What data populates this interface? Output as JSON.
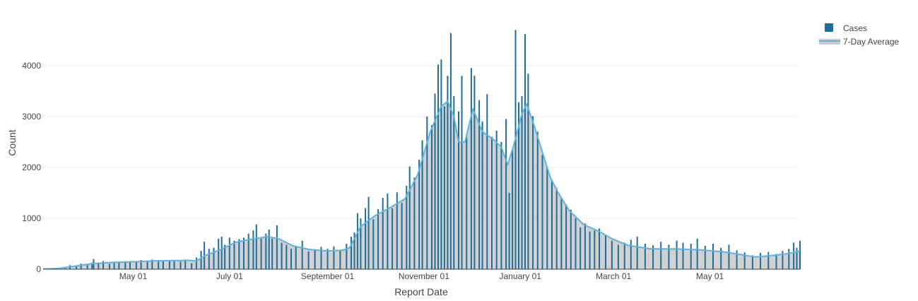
{
  "chart_data": {
    "type": "bar",
    "xlabel": "Report Date",
    "ylabel": "Count",
    "ylim": [
      0,
      4900
    ],
    "yticks": [
      0,
      1000,
      2000,
      3000,
      4000
    ],
    "xticks": [
      {
        "date": "2020-05-01",
        "label": "May 01"
      },
      {
        "date": "2020-07-01",
        "label": "July 01"
      },
      {
        "date": "2020-09-01",
        "label": "September 01"
      },
      {
        "date": "2020-11-01",
        "label": "November 01"
      },
      {
        "date": "2021-01-01",
        "label": "January 01"
      },
      {
        "date": "2021-03-01",
        "label": "March 01"
      },
      {
        "date": "2021-05-01",
        "label": "May 01"
      }
    ],
    "x_range": [
      "2020-03-05",
      "2021-06-27"
    ],
    "grid": true,
    "legend_position": "top-right",
    "colors": {
      "bars": "#1f6e9a",
      "line": "#5ab4e0",
      "area": "#cccccc",
      "grid": "#eeeeee"
    },
    "series": [
      {
        "name": "Cases",
        "kind": "bar",
        "points": [
          [
            "2020-03-05",
            3
          ],
          [
            "2020-03-12",
            10
          ],
          [
            "2020-03-19",
            30
          ],
          [
            "2020-03-22",
            80
          ],
          [
            "2020-03-26",
            70
          ],
          [
            "2020-03-29",
            110
          ],
          [
            "2020-04-02",
            100
          ],
          [
            "2020-04-05",
            130
          ],
          [
            "2020-04-06",
            200
          ],
          [
            "2020-04-09",
            130
          ],
          [
            "2020-04-12",
            160
          ],
          [
            "2020-04-16",
            110
          ],
          [
            "2020-04-19",
            120
          ],
          [
            "2020-04-22",
            150
          ],
          [
            "2020-04-26",
            130
          ],
          [
            "2020-04-29",
            160
          ],
          [
            "2020-05-03",
            140
          ],
          [
            "2020-05-06",
            180
          ],
          [
            "2020-05-10",
            160
          ],
          [
            "2020-05-13",
            190
          ],
          [
            "2020-05-17",
            150
          ],
          [
            "2020-05-20",
            180
          ],
          [
            "2020-05-24",
            160
          ],
          [
            "2020-05-27",
            170
          ],
          [
            "2020-05-31",
            150
          ],
          [
            "2020-06-03",
            190
          ],
          [
            "2020-06-07",
            120
          ],
          [
            "2020-06-10",
            230
          ],
          [
            "2020-06-13",
            360
          ],
          [
            "2020-06-15",
            540
          ],
          [
            "2020-06-18",
            400
          ],
          [
            "2020-06-21",
            420
          ],
          [
            "2020-06-24",
            600
          ],
          [
            "2020-06-26",
            640
          ],
          [
            "2020-06-28",
            480
          ],
          [
            "2020-07-01",
            620
          ],
          [
            "2020-07-04",
            560
          ],
          [
            "2020-07-07",
            590
          ],
          [
            "2020-07-10",
            620
          ],
          [
            "2020-07-13",
            700
          ],
          [
            "2020-07-16",
            760
          ],
          [
            "2020-07-18",
            880
          ],
          [
            "2020-07-21",
            600
          ],
          [
            "2020-07-24",
            700
          ],
          [
            "2020-07-26",
            780
          ],
          [
            "2020-07-28",
            600
          ],
          [
            "2020-07-31",
            860
          ],
          [
            "2020-08-03",
            520
          ],
          [
            "2020-08-06",
            480
          ],
          [
            "2020-08-09",
            400
          ],
          [
            "2020-08-12",
            460
          ],
          [
            "2020-08-16",
            560
          ],
          [
            "2020-08-20",
            350
          ],
          [
            "2020-08-24",
            370
          ],
          [
            "2020-08-28",
            440
          ],
          [
            "2020-09-01",
            400
          ],
          [
            "2020-09-05",
            450
          ],
          [
            "2020-09-09",
            380
          ],
          [
            "2020-09-13",
            500
          ],
          [
            "2020-09-16",
            640
          ],
          [
            "2020-09-18",
            720
          ],
          [
            "2020-09-20",
            1100
          ],
          [
            "2020-09-22",
            1000
          ],
          [
            "2020-09-25",
            1200
          ],
          [
            "2020-09-27",
            1420
          ],
          [
            "2020-09-30",
            980
          ],
          [
            "2020-10-03",
            1180
          ],
          [
            "2020-10-06",
            1400
          ],
          [
            "2020-10-09",
            1490
          ],
          [
            "2020-10-12",
            1200
          ],
          [
            "2020-10-15",
            1510
          ],
          [
            "2020-10-18",
            1300
          ],
          [
            "2020-10-21",
            1640
          ],
          [
            "2020-10-23",
            2020
          ],
          [
            "2020-10-26",
            1800
          ],
          [
            "2020-10-29",
            2150
          ],
          [
            "2020-10-31",
            2530
          ],
          [
            "2020-11-03",
            3000
          ],
          [
            "2020-11-06",
            2830
          ],
          [
            "2020-11-08",
            3450
          ],
          [
            "2020-11-10",
            4020
          ],
          [
            "2020-11-12",
            4120
          ],
          [
            "2020-11-14",
            3200
          ],
          [
            "2020-11-16",
            3800
          ],
          [
            "2020-11-18",
            4640
          ],
          [
            "2020-11-20",
            3400
          ],
          [
            "2020-11-23",
            3100
          ],
          [
            "2020-11-25",
            3800
          ],
          [
            "2020-11-28",
            2600
          ],
          [
            "2020-12-01",
            3950
          ],
          [
            "2020-12-03",
            3800
          ],
          [
            "2020-12-06",
            3320
          ],
          [
            "2020-12-08",
            2900
          ],
          [
            "2020-12-11",
            3440
          ],
          [
            "2020-12-14",
            2600
          ],
          [
            "2020-12-17",
            2720
          ],
          [
            "2020-12-20",
            2500
          ],
          [
            "2020-12-23",
            2950
          ],
          [
            "2020-12-25",
            1500
          ],
          [
            "2020-12-27",
            2350
          ],
          [
            "2020-12-29",
            4700
          ],
          [
            "2020-12-31",
            3280
          ],
          [
            "2021-01-02",
            3400
          ],
          [
            "2021-01-04",
            4620
          ],
          [
            "2021-01-06",
            3840
          ],
          [
            "2021-01-09",
            3010
          ],
          [
            "2021-01-12",
            2700
          ],
          [
            "2021-01-15",
            2250
          ],
          [
            "2021-01-18",
            2000
          ],
          [
            "2021-01-21",
            1760
          ],
          [
            "2021-01-24",
            1590
          ],
          [
            "2021-01-27",
            1400
          ],
          [
            "2021-01-30",
            1270
          ],
          [
            "2021-02-02",
            1170
          ],
          [
            "2021-02-05",
            1000
          ],
          [
            "2021-02-08",
            820
          ],
          [
            "2021-02-11",
            900
          ],
          [
            "2021-02-14",
            740
          ],
          [
            "2021-02-17",
            760
          ],
          [
            "2021-02-20",
            800
          ],
          [
            "2021-02-24",
            680
          ],
          [
            "2021-02-28",
            560
          ],
          [
            "2021-03-04",
            480
          ],
          [
            "2021-03-08",
            520
          ],
          [
            "2021-03-12",
            580
          ],
          [
            "2021-03-16",
            640
          ],
          [
            "2021-03-21",
            500
          ],
          [
            "2021-03-26",
            470
          ],
          [
            "2021-03-31",
            540
          ],
          [
            "2021-04-05",
            480
          ],
          [
            "2021-04-10",
            560
          ],
          [
            "2021-04-14",
            520
          ],
          [
            "2021-04-19",
            500
          ],
          [
            "2021-04-23",
            600
          ],
          [
            "2021-04-28",
            460
          ],
          [
            "2021-05-03",
            500
          ],
          [
            "2021-05-08",
            420
          ],
          [
            "2021-05-13",
            480
          ],
          [
            "2021-05-18",
            370
          ],
          [
            "2021-05-23",
            330
          ],
          [
            "2021-05-28",
            270
          ],
          [
            "2021-06-02",
            320
          ],
          [
            "2021-06-07",
            340
          ],
          [
            "2021-06-12",
            300
          ],
          [
            "2021-06-16",
            360
          ],
          [
            "2021-06-20",
            400
          ],
          [
            "2021-06-23",
            520
          ],
          [
            "2021-06-25",
            420
          ],
          [
            "2021-06-27",
            560
          ]
        ]
      },
      {
        "name": "7-Day Average",
        "kind": "area-line",
        "points": [
          [
            "2020-03-05",
            5
          ],
          [
            "2020-03-15",
            15
          ],
          [
            "2020-03-25",
            60
          ],
          [
            "2020-04-05",
            110
          ],
          [
            "2020-04-15",
            130
          ],
          [
            "2020-04-25",
            140
          ],
          [
            "2020-05-05",
            150
          ],
          [
            "2020-05-15",
            165
          ],
          [
            "2020-05-25",
            170
          ],
          [
            "2020-06-05",
            175
          ],
          [
            "2020-06-10",
            160
          ],
          [
            "2020-06-15",
            260
          ],
          [
            "2020-06-25",
            380
          ],
          [
            "2020-07-05",
            530
          ],
          [
            "2020-07-15",
            590
          ],
          [
            "2020-07-25",
            640
          ],
          [
            "2020-08-01",
            600
          ],
          [
            "2020-08-10",
            460
          ],
          [
            "2020-08-20",
            390
          ],
          [
            "2020-09-01",
            360
          ],
          [
            "2020-09-10",
            370
          ],
          [
            "2020-09-15",
            420
          ],
          [
            "2020-09-22",
            840
          ],
          [
            "2020-10-01",
            1050
          ],
          [
            "2020-10-10",
            1200
          ],
          [
            "2020-10-20",
            1380
          ],
          [
            "2020-10-28",
            1850
          ],
          [
            "2020-11-05",
            2700
          ],
          [
            "2020-11-12",
            3200
          ],
          [
            "2020-11-16",
            3300
          ],
          [
            "2020-11-20",
            3000
          ],
          [
            "2020-11-23",
            2500
          ],
          [
            "2020-11-27",
            2500
          ],
          [
            "2020-12-02",
            3150
          ],
          [
            "2020-12-08",
            2700
          ],
          [
            "2020-12-15",
            2550
          ],
          [
            "2020-12-20",
            2400
          ],
          [
            "2020-12-24",
            2050
          ],
          [
            "2020-12-28",
            2450
          ],
          [
            "2021-01-02",
            3050
          ],
          [
            "2021-01-05",
            3250
          ],
          [
            "2021-01-10",
            2800
          ],
          [
            "2021-01-15",
            2300
          ],
          [
            "2021-01-20",
            1800
          ],
          [
            "2021-01-25",
            1500
          ],
          [
            "2021-02-01",
            1150
          ],
          [
            "2021-02-10",
            880
          ],
          [
            "2021-02-20",
            740
          ],
          [
            "2021-02-28",
            600
          ],
          [
            "2021-03-10",
            470
          ],
          [
            "2021-03-25",
            400
          ],
          [
            "2021-04-10",
            400
          ],
          [
            "2021-04-25",
            380
          ],
          [
            "2021-05-10",
            340
          ],
          [
            "2021-05-20",
            290
          ],
          [
            "2021-05-30",
            240
          ],
          [
            "2021-06-10",
            270
          ],
          [
            "2021-06-20",
            310
          ],
          [
            "2021-06-27",
            360
          ]
        ]
      }
    ]
  }
}
